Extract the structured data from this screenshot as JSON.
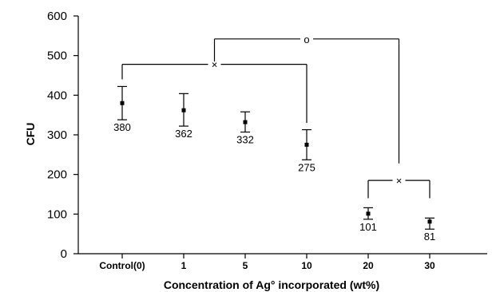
{
  "chart_data": {
    "type": "scatter",
    "categories": [
      "Control(0)",
      "1",
      "5",
      "10",
      "20",
      "30"
    ],
    "values": [
      380,
      362,
      332,
      275,
      101,
      81
    ],
    "error_low": [
      338,
      322,
      307,
      237,
      87,
      62
    ],
    "error_high": [
      422,
      404,
      358,
      313,
      116,
      90
    ],
    "data_labels": [
      "380",
      "362",
      "332",
      "275",
      "101",
      "81"
    ],
    "xlabel": "Concentration of Ag° incorporated (wt%)",
    "ylabel": "CFU",
    "ylim": [
      0,
      600
    ],
    "yticks": [
      "0",
      "100",
      "200",
      "300",
      "400",
      "500",
      "600"
    ],
    "grid": false,
    "significance": [
      {
        "from": 0,
        "to": 3,
        "y": 478,
        "symbol": "×"
      },
      {
        "from": 1.5,
        "to": 4.5,
        "y": 542,
        "symbol": "o"
      },
      {
        "from": 4,
        "to": 5,
        "y": 185,
        "symbol": "×"
      }
    ]
  }
}
